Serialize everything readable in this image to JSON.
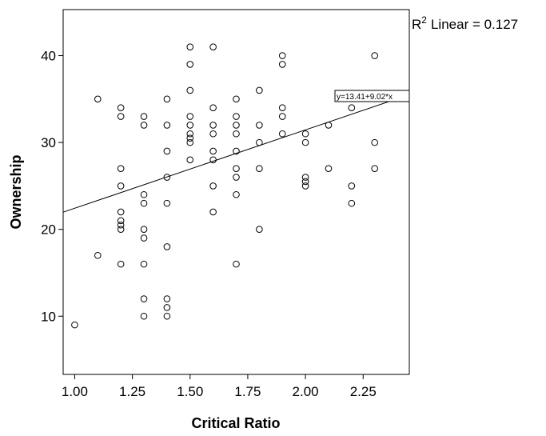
{
  "chart_data": {
    "type": "scatter",
    "xlabel": "Critical Ratio",
    "ylabel": "Ownership",
    "xlim": [
      0.95,
      2.45
    ],
    "ylim": [
      3.3,
      45.3
    ],
    "xticks": [
      1.0,
      1.25,
      1.5,
      1.75,
      2.0,
      2.25
    ],
    "xtick_labels": [
      "1.00",
      "1.25",
      "1.50",
      "1.75",
      "2.00",
      "2.25"
    ],
    "yticks": [
      10,
      20,
      30,
      40
    ],
    "ytick_labels": [
      "10",
      "20",
      "30",
      "40"
    ],
    "grid": false,
    "fit_line": {
      "type": "linear",
      "intercept": 13.41,
      "slope": 9.02,
      "equation_label": "y=13.41+9.02*x",
      "r2_prefix": "R",
      "r2_superscript": "2",
      "r2_text": "Linear = 0.127"
    },
    "points": [
      {
        "x": 1.0,
        "y": 9
      },
      {
        "x": 1.1,
        "y": 35
      },
      {
        "x": 1.1,
        "y": 17
      },
      {
        "x": 1.2,
        "y": 34
      },
      {
        "x": 1.2,
        "y": 33
      },
      {
        "x": 1.2,
        "y": 27
      },
      {
        "x": 1.2,
        "y": 25
      },
      {
        "x": 1.2,
        "y": 22
      },
      {
        "x": 1.2,
        "y": 21
      },
      {
        "x": 1.2,
        "y": 20.5
      },
      {
        "x": 1.2,
        "y": 20
      },
      {
        "x": 1.2,
        "y": 16
      },
      {
        "x": 1.3,
        "y": 33
      },
      {
        "x": 1.3,
        "y": 32
      },
      {
        "x": 1.3,
        "y": 24
      },
      {
        "x": 1.3,
        "y": 23
      },
      {
        "x": 1.3,
        "y": 20
      },
      {
        "x": 1.3,
        "y": 19
      },
      {
        "x": 1.3,
        "y": 16
      },
      {
        "x": 1.3,
        "y": 12
      },
      {
        "x": 1.3,
        "y": 10
      },
      {
        "x": 1.4,
        "y": 35
      },
      {
        "x": 1.4,
        "y": 32
      },
      {
        "x": 1.4,
        "y": 29
      },
      {
        "x": 1.4,
        "y": 26
      },
      {
        "x": 1.4,
        "y": 23
      },
      {
        "x": 1.4,
        "y": 18
      },
      {
        "x": 1.4,
        "y": 12
      },
      {
        "x": 1.4,
        "y": 11
      },
      {
        "x": 1.4,
        "y": 10
      },
      {
        "x": 1.5,
        "y": 41
      },
      {
        "x": 1.5,
        "y": 39
      },
      {
        "x": 1.5,
        "y": 36
      },
      {
        "x": 1.5,
        "y": 33
      },
      {
        "x": 1.5,
        "y": 32
      },
      {
        "x": 1.5,
        "y": 31
      },
      {
        "x": 1.5,
        "y": 30.5
      },
      {
        "x": 1.5,
        "y": 30
      },
      {
        "x": 1.5,
        "y": 28
      },
      {
        "x": 1.6,
        "y": 41
      },
      {
        "x": 1.6,
        "y": 34
      },
      {
        "x": 1.6,
        "y": 32
      },
      {
        "x": 1.6,
        "y": 31
      },
      {
        "x": 1.6,
        "y": 29
      },
      {
        "x": 1.6,
        "y": 28
      },
      {
        "x": 1.6,
        "y": 25
      },
      {
        "x": 1.6,
        "y": 22
      },
      {
        "x": 1.7,
        "y": 35
      },
      {
        "x": 1.7,
        "y": 33
      },
      {
        "x": 1.7,
        "y": 32
      },
      {
        "x": 1.7,
        "y": 31
      },
      {
        "x": 1.7,
        "y": 29
      },
      {
        "x": 1.7,
        "y": 27
      },
      {
        "x": 1.7,
        "y": 26
      },
      {
        "x": 1.7,
        "y": 24
      },
      {
        "x": 1.7,
        "y": 16
      },
      {
        "x": 1.8,
        "y": 36
      },
      {
        "x": 1.8,
        "y": 32
      },
      {
        "x": 1.8,
        "y": 30
      },
      {
        "x": 1.8,
        "y": 27
      },
      {
        "x": 1.8,
        "y": 20
      },
      {
        "x": 1.9,
        "y": 40
      },
      {
        "x": 1.9,
        "y": 39
      },
      {
        "x": 1.9,
        "y": 34
      },
      {
        "x": 1.9,
        "y": 33
      },
      {
        "x": 1.9,
        "y": 31
      },
      {
        "x": 2.0,
        "y": 31
      },
      {
        "x": 2.0,
        "y": 30
      },
      {
        "x": 2.0,
        "y": 26
      },
      {
        "x": 2.0,
        "y": 25.5
      },
      {
        "x": 2.0,
        "y": 25
      },
      {
        "x": 2.1,
        "y": 32
      },
      {
        "x": 2.1,
        "y": 27
      },
      {
        "x": 2.2,
        "y": 34
      },
      {
        "x": 2.2,
        "y": 25
      },
      {
        "x": 2.2,
        "y": 23
      },
      {
        "x": 2.3,
        "y": 40
      },
      {
        "x": 2.3,
        "y": 30
      },
      {
        "x": 2.3,
        "y": 27
      }
    ]
  }
}
